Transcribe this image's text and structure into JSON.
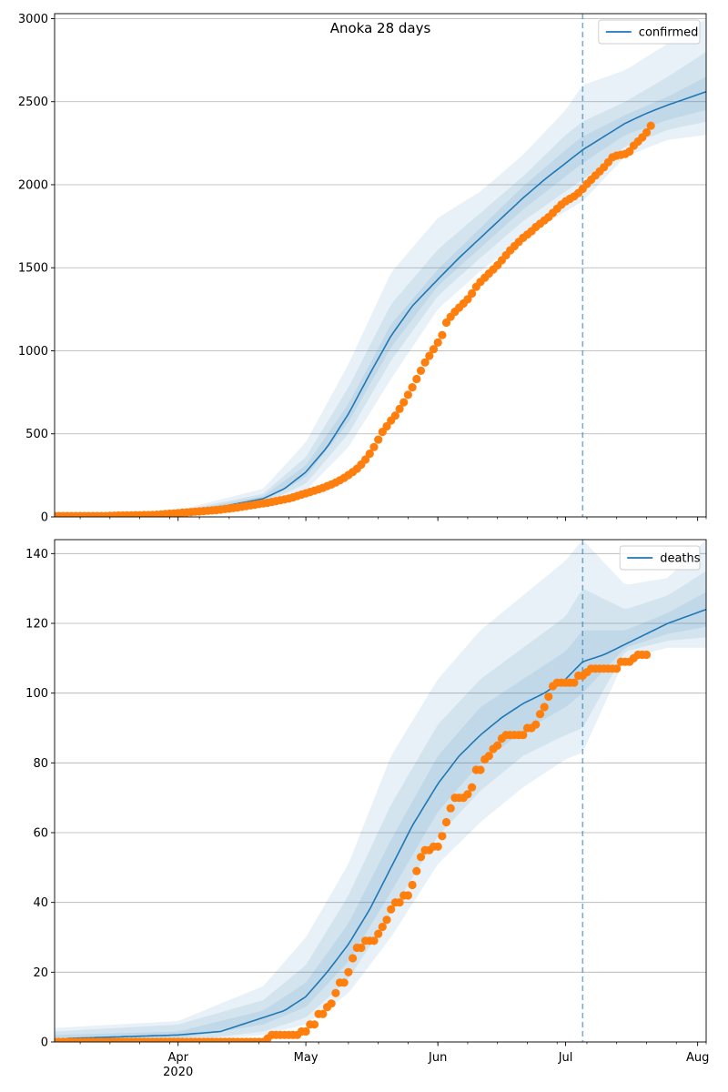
{
  "chart_data": [
    {
      "type": "line",
      "title": "Anoka 28 days",
      "xlabel": "",
      "ylabel": "",
      "ylim": [
        0,
        3030
      ],
      "yticks": [
        0,
        500,
        1000,
        1500,
        2000,
        2500,
        3000
      ],
      "xlim": [
        "2020-03-03",
        "2020-08-03"
      ],
      "grid": "horizontal",
      "legend_position": "top-right",
      "forecast_start": "2020-07-05",
      "model_series": {
        "name": "confirmed",
        "color": "#1f77b4",
        "x": [
          "2020-03-03",
          "2020-03-18",
          "2020-04-01",
          "2020-04-11",
          "2020-04-21",
          "2020-04-26",
          "2020-05-01",
          "2020-05-06",
          "2020-05-11",
          "2020-05-16",
          "2020-05-21",
          "2020-05-26",
          "2020-06-01",
          "2020-06-06",
          "2020-06-11",
          "2020-06-16",
          "2020-06-21",
          "2020-06-26",
          "2020-07-01",
          "2020-07-05",
          "2020-07-10",
          "2020-07-15",
          "2020-07-20",
          "2020-07-25",
          "2020-08-03"
        ],
        "y": [
          5,
          8,
          25,
          60,
          110,
          170,
          270,
          420,
          620,
          860,
          1090,
          1270,
          1430,
          1560,
          1680,
          1800,
          1920,
          2030,
          2130,
          2210,
          2290,
          2370,
          2430,
          2480,
          2560
        ]
      },
      "bands": [
        {
          "x": [
            "2020-03-03",
            "2020-04-01",
            "2020-04-21",
            "2020-05-01",
            "2020-05-11",
            "2020-05-21",
            "2020-06-01",
            "2020-06-11",
            "2020-06-21",
            "2020-07-01",
            "2020-07-05",
            "2020-07-15",
            "2020-07-25",
            "2020-08-03"
          ],
          "lower": [
            0,
            15,
            60,
            160,
            420,
            830,
            1250,
            1480,
            1680,
            1840,
            1900,
            2170,
            2270,
            2300
          ],
          "upper": [
            15,
            40,
            170,
            450,
            920,
            1470,
            1800,
            1960,
            2180,
            2450,
            2600,
            2690,
            2850,
            3000
          ]
        },
        {
          "x": [
            "2020-03-03",
            "2020-04-01",
            "2020-04-21",
            "2020-05-01",
            "2020-05-11",
            "2020-05-21",
            "2020-06-01",
            "2020-06-11",
            "2020-06-21",
            "2020-07-01",
            "2020-07-05",
            "2020-07-15",
            "2020-07-25",
            "2020-08-03"
          ],
          "lower": [
            2,
            18,
            80,
            200,
            500,
            940,
            1330,
            1560,
            1780,
            1960,
            2030,
            2230,
            2330,
            2380
          ],
          "upper": [
            10,
            33,
            140,
            360,
            780,
            1280,
            1610,
            1830,
            2050,
            2300,
            2380,
            2500,
            2650,
            2800
          ]
        },
        {
          "x": [
            "2020-03-03",
            "2020-04-01",
            "2020-04-21",
            "2020-05-01",
            "2020-05-11",
            "2020-05-21",
            "2020-06-01",
            "2020-06-11",
            "2020-06-21",
            "2020-07-01",
            "2020-07-05",
            "2020-07-15",
            "2020-07-25",
            "2020-08-03"
          ],
          "lower": [
            4,
            22,
            95,
            240,
            570,
            1020,
            1390,
            1620,
            1850,
            2050,
            2130,
            2300,
            2390,
            2450
          ],
          "upper": [
            7,
            28,
            125,
            310,
            680,
            1160,
            1490,
            1740,
            1990,
            2210,
            2290,
            2420,
            2530,
            2650
          ]
        }
      ],
      "observed": {
        "start": "2020-03-03",
        "values": [
          5,
          5,
          5,
          5,
          5,
          5,
          5,
          5,
          5,
          5,
          5,
          5,
          5,
          6,
          7,
          8,
          8,
          9,
          9,
          10,
          10,
          11,
          11,
          12,
          13,
          15,
          17,
          19,
          21,
          23,
          25,
          27,
          29,
          31,
          33,
          35,
          37,
          39,
          41,
          44,
          47,
          50,
          53,
          57,
          61,
          65,
          69,
          73,
          77,
          81,
          85,
          90,
          95,
          100,
          105,
          110,
          118,
          126,
          134,
          142,
          150,
          158,
          166,
          175,
          185,
          195,
          207,
          220,
          235,
          252,
          270,
          290,
          315,
          345,
          380,
          420,
          465,
          512,
          545,
          580,
          610,
          650,
          690,
          735,
          780,
          830,
          880,
          930,
          970,
          1010,
          1050,
          1095,
          1170,
          1205,
          1235,
          1260,
          1285,
          1310,
          1345,
          1385,
          1415,
          1440,
          1465,
          1490,
          1515,
          1545,
          1575,
          1605,
          1630,
          1655,
          1680,
          1700,
          1720,
          1745,
          1765,
          1785,
          1805,
          1830,
          1855,
          1880,
          1900,
          1915,
          1930,
          1950,
          1975,
          2005,
          2030,
          2055,
          2080,
          2105,
          2135,
          2165,
          2175,
          2180,
          2185,
          2200,
          2235,
          2260,
          2285,
          2315,
          2355
        ]
      },
      "xticks_major": [
        {
          "date": "2020-04-01",
          "label": "Apr",
          "sublabel": ""
        },
        {
          "date": "2020-05-01",
          "label": "May",
          "sublabel": ""
        },
        {
          "date": "2020-06-01",
          "label": "Jun",
          "sublabel": ""
        },
        {
          "date": "2020-07-01",
          "label": "Jul",
          "sublabel": ""
        },
        {
          "date": "2020-08-01",
          "label": "Aug",
          "sublabel": ""
        }
      ]
    },
    {
      "type": "line",
      "title": "",
      "xlabel": "",
      "ylabel": "",
      "ylim": [
        0,
        144
      ],
      "yticks": [
        0,
        20,
        40,
        60,
        80,
        100,
        120,
        140
      ],
      "xlim": [
        "2020-03-03",
        "2020-08-03"
      ],
      "grid": "horizontal",
      "legend_position": "top-right",
      "forecast_start": "2020-07-05",
      "model_series": {
        "name": "deaths",
        "color": "#1f77b4",
        "x": [
          "2020-03-03",
          "2020-03-06",
          "2020-04-01",
          "2020-04-11",
          "2020-04-16",
          "2020-04-21",
          "2020-04-26",
          "2020-05-01",
          "2020-05-06",
          "2020-05-11",
          "2020-05-16",
          "2020-05-21",
          "2020-05-26",
          "2020-06-01",
          "2020-06-06",
          "2020-06-11",
          "2020-06-16",
          "2020-06-21",
          "2020-06-26",
          "2020-07-01",
          "2020-07-05",
          "2020-07-10",
          "2020-07-15",
          "2020-07-20",
          "2020-07-25",
          "2020-08-03"
        ],
        "y": [
          0,
          1,
          2,
          3,
          5,
          7,
          9,
          13,
          20,
          28,
          38,
          50,
          62,
          74,
          82,
          88,
          93,
          97,
          100,
          104,
          109,
          111,
          114,
          117,
          120,
          124
        ]
      },
      "bands": [
        {
          "x": [
            "2020-03-03",
            "2020-04-01",
            "2020-04-21",
            "2020-05-01",
            "2020-05-11",
            "2020-05-21",
            "2020-06-01",
            "2020-06-11",
            "2020-06-21",
            "2020-07-01",
            "2020-07-05",
            "2020-07-15",
            "2020-07-25",
            "2020-08-03"
          ],
          "lower": [
            0,
            0,
            2,
            5,
            14,
            30,
            51,
            63,
            73,
            81,
            83,
            110,
            113,
            113
          ],
          "upper": [
            4,
            6,
            16,
            30,
            51,
            82,
            104,
            118,
            128,
            138,
            144,
            131,
            133,
            144
          ]
        },
        {
          "x": [
            "2020-03-03",
            "2020-04-01",
            "2020-04-21",
            "2020-05-01",
            "2020-05-11",
            "2020-05-21",
            "2020-06-01",
            "2020-06-11",
            "2020-06-21",
            "2020-07-01",
            "2020-07-05",
            "2020-07-15",
            "2020-07-25",
            "2020-08-03"
          ],
          "lower": [
            0,
            0,
            3,
            7,
            18,
            37,
            59,
            72,
            82,
            88,
            90,
            112,
            115,
            116
          ],
          "upper": [
            3,
            5,
            12,
            22,
            42,
            68,
            91,
            104,
            113,
            122,
            130,
            124,
            128,
            135
          ]
        },
        {
          "x": [
            "2020-03-03",
            "2020-04-01",
            "2020-04-21",
            "2020-05-01",
            "2020-05-11",
            "2020-05-21",
            "2020-06-01",
            "2020-06-11",
            "2020-06-21",
            "2020-07-01",
            "2020-07-05",
            "2020-07-15",
            "2020-07-25",
            "2020-08-03"
          ],
          "lower": [
            0,
            1,
            5,
            10,
            23,
            43,
            66,
            80,
            89,
            96,
            100,
            113,
            117,
            119
          ],
          "upper": [
            2,
            3,
            9,
            17,
            34,
            58,
            82,
            96,
            104,
            112,
            118,
            118,
            123,
            129
          ]
        }
      ],
      "observed": {
        "start": "2020-03-03",
        "values": [
          0,
          0,
          0,
          0,
          0,
          0,
          0,
          0,
          0,
          0,
          0,
          0,
          0,
          0,
          0,
          0,
          0,
          0,
          0,
          0,
          0,
          0,
          0,
          0,
          0,
          0,
          0,
          0,
          0,
          0,
          0,
          0,
          0,
          0,
          0,
          0,
          0,
          0,
          0,
          0,
          0,
          0,
          0,
          0,
          0,
          0,
          0,
          0,
          0,
          0,
          1,
          2,
          2,
          2,
          2,
          2,
          2,
          2,
          3,
          3,
          5,
          5,
          8,
          8,
          10,
          11,
          14,
          17,
          17,
          20,
          24,
          27,
          27,
          29,
          29,
          29,
          31,
          33,
          35,
          38,
          40,
          40,
          42,
          42,
          45,
          49,
          53,
          55,
          55,
          56,
          56,
          59,
          63,
          67,
          70,
          70,
          70,
          71,
          73,
          78,
          78,
          81,
          82,
          84,
          85,
          87,
          88,
          88,
          88,
          88,
          88,
          90,
          90,
          91,
          94,
          96,
          99,
          102,
          103,
          103,
          103,
          103,
          103,
          105,
          105,
          106,
          107,
          107,
          107,
          107,
          107,
          107,
          107,
          109,
          109,
          109,
          110,
          111,
          111,
          111
        ]
      },
      "xticks_major": [
        {
          "date": "2020-04-01",
          "label": "Apr",
          "sublabel": "2020"
        },
        {
          "date": "2020-05-01",
          "label": "May",
          "sublabel": ""
        },
        {
          "date": "2020-06-01",
          "label": "Jun",
          "sublabel": ""
        },
        {
          "date": "2020-07-01",
          "label": "Jul",
          "sublabel": ""
        },
        {
          "date": "2020-08-01",
          "label": "Aug",
          "sublabel": ""
        }
      ]
    }
  ],
  "colors": {
    "model": "#1f77b4",
    "observed": "#ff7f0e",
    "band": "#1f77b4",
    "grid": "#b0b0b0",
    "forecast_line": "#1f77b4"
  }
}
